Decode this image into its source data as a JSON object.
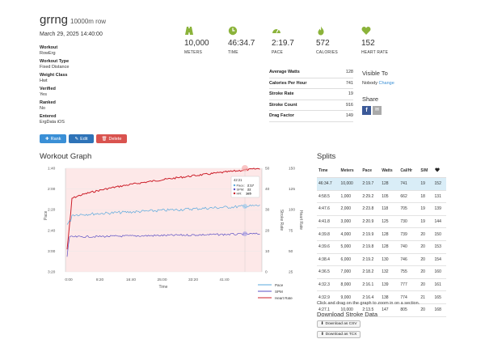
{
  "workout": {
    "name": "grrng",
    "subtitle": "10000m row",
    "datetime": "March 29, 2025 14:40:00",
    "fields": [
      {
        "label": "Workout",
        "value": "RowErg"
      },
      {
        "label": "Workout Type",
        "value": "Fixed Distance"
      },
      {
        "label": "Weight Class",
        "value": "Hwt"
      },
      {
        "label": "Verified",
        "value": "Yes"
      },
      {
        "label": "Ranked",
        "value": "No"
      },
      {
        "label": "Entered",
        "value": "ErgData iOS"
      }
    ]
  },
  "buttons": {
    "rank": "Rank",
    "edit": "Edit",
    "delete": "Delete"
  },
  "stats": [
    {
      "icon": "distance-road-icon",
      "value": "10,000",
      "caption": "METERS"
    },
    {
      "icon": "clock-icon",
      "value": "46:34.7",
      "caption": "TIME"
    },
    {
      "icon": "speedometer-icon",
      "value": "2:19.7",
      "caption": "PACE"
    },
    {
      "icon": "flame-icon",
      "value": "572",
      "caption": "CALORIES"
    },
    {
      "icon": "heart-icon",
      "value": "152",
      "caption": "HEART RATE"
    }
  ],
  "summary": [
    {
      "k": "Average Watts",
      "v": "128"
    },
    {
      "k": "Calories Per Hour",
      "v": "741"
    },
    {
      "k": "Stroke Rate",
      "v": "19"
    },
    {
      "k": "Stroke Count",
      "v": "916"
    },
    {
      "k": "Drag Factor",
      "v": "149"
    }
  ],
  "visibility": {
    "heading": "Visible To",
    "value": "Nobody",
    "change": "Change"
  },
  "share": {
    "heading": "Share",
    "fb": "f"
  },
  "graph": {
    "heading": "Workout Graph",
    "left_axis_title": "Pace",
    "right_axis_title_1": "Stroke Rate",
    "right_axis_title_2": "Heart Rate",
    "x_axis_title": "Time",
    "left_ticks": [
      "1:40",
      "2:00",
      "2:20",
      "2:40",
      "3:00",
      "3:20"
    ],
    "right1_ticks": [
      "50",
      "40",
      "30",
      "20",
      "10",
      "0"
    ],
    "right2_ticks": [
      "150",
      "125",
      "100",
      "75",
      "50",
      "25"
    ],
    "x_ticks": [
      "0:00",
      "8:20",
      "16:40",
      "25:00",
      "33:20",
      "41:40"
    ],
    "tooltip": {
      "time": "42:21",
      "pace_label": "Pace:",
      "pace": "2:17",
      "spm_label": "SPM:",
      "spm": "22",
      "hr_label": "HR:",
      "hr": "165"
    },
    "legend": [
      "Pace",
      "SPM",
      "Heart Rate"
    ],
    "colors": {
      "pace": "#5aa9dd",
      "spm": "#5a4fc4",
      "hr": "#cc1f2a"
    }
  },
  "splits": {
    "heading": "Splits",
    "columns": [
      "Time",
      "Meters",
      "Pace",
      "Watts",
      "Cal/Hr",
      "S/M",
      "heart-icon"
    ],
    "rows": [
      [
        "46:34.7",
        "10,000",
        "2:19.7",
        "128",
        "741",
        "19",
        "152"
      ],
      [
        "4:58.5",
        "1,000",
        "2:29.2",
        "105",
        "662",
        "18",
        "131"
      ],
      [
        "4:47.6",
        "2,000",
        "2:23.8",
        "118",
        "705",
        "19",
        "139"
      ],
      [
        "4:41.8",
        "3,000",
        "2:20.9",
        "125",
        "730",
        "19",
        "144"
      ],
      [
        "4:39.8",
        "4,000",
        "2:19.9",
        "128",
        "739",
        "20",
        "150"
      ],
      [
        "4:39.6",
        "5,000",
        "2:19.8",
        "128",
        "740",
        "20",
        "153"
      ],
      [
        "4:38.4",
        "6,000",
        "2:19.2",
        "130",
        "746",
        "20",
        "154"
      ],
      [
        "4:36.5",
        "7,000",
        "2:18.2",
        "132",
        "755",
        "20",
        "160"
      ],
      [
        "4:32.3",
        "8,000",
        "2:16.1",
        "139",
        "777",
        "20",
        "161"
      ],
      [
        "4:32.9",
        "9,000",
        "2:16.4",
        "138",
        "774",
        "21",
        "165"
      ],
      [
        "4:27.1",
        "10,000",
        "2:13.5",
        "147",
        "805",
        "20",
        "168"
      ]
    ],
    "note": "Click and drag on the graph to zoom in on a section."
  },
  "download": {
    "heading": "Download Stroke Data",
    "csv": "Download as CSV",
    "tcx": "Download as TCX"
  }
}
